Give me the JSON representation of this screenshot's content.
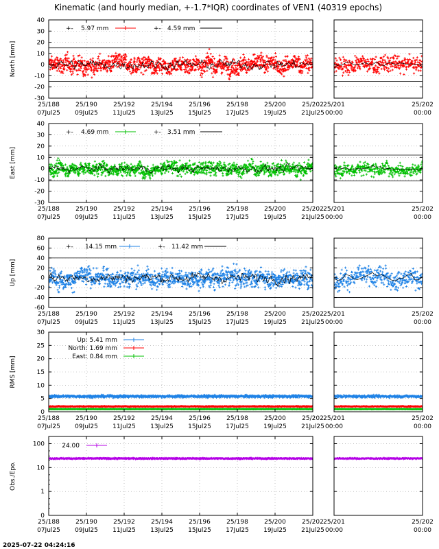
{
  "title": "Kinematic (and hourly median, +-1.7*IQR) coordinates of VEN1 (40319 epochs)",
  "footer_timestamp": "2025-07-22 04:24:16",
  "colors": {
    "north": "#ff0000",
    "east": "#00c000",
    "up": "#1e82e6",
    "obs": "#b400e6",
    "median": "#000000",
    "grid": "#a0a0a0"
  },
  "x_main": {
    "range": [
      188,
      202
    ],
    "ticks": [
      {
        "v": 188,
        "top": "25/188",
        "bottom": "07Jul25"
      },
      {
        "v": 190,
        "top": "25/190",
        "bottom": "09Jul25"
      },
      {
        "v": 192,
        "top": "25/192",
        "bottom": "11Jul25"
      },
      {
        "v": 194,
        "top": "25/194",
        "bottom": "13Jul25"
      },
      {
        "v": 196,
        "top": "25/196",
        "bottom": "15Jul25"
      },
      {
        "v": 198,
        "top": "25/198",
        "bottom": "17Jul25"
      },
      {
        "v": 200,
        "top": "25/200",
        "bottom": "19Jul25"
      },
      {
        "v": 202,
        "top": "25/202",
        "bottom": "21Jul25"
      }
    ]
  },
  "x_zoom": {
    "range": [
      201,
      202
    ],
    "ticks": [
      {
        "v": 201,
        "top": "25/201",
        "bottom": "00:00"
      },
      {
        "v": 202,
        "top": "25/202",
        "bottom": "00:00"
      }
    ]
  },
  "chart_data": [
    {
      "type": "scatter",
      "key": "north",
      "ylabel": "North [mm]",
      "ylim": [
        -30,
        40
      ],
      "yticks": [
        {
          "v": -30,
          "label": "-30"
        },
        {
          "v": -20,
          "label": "-20"
        },
        {
          "v": -10,
          "label": "-10"
        },
        {
          "v": 0,
          "label": "0"
        },
        {
          "v": 10,
          "label": "10"
        },
        {
          "v": 20,
          "label": "20"
        },
        {
          "v": 30,
          "label": "30"
        },
        {
          "v": 40,
          "label": "40"
        }
      ],
      "spread": 9,
      "bounds": [
        -15,
        15
      ],
      "legend": [
        {
          "name": "kinematic",
          "text": "5.97 mm",
          "color": "north"
        },
        {
          "name": "median",
          "text": "4.59 mm",
          "color": "median"
        }
      ]
    },
    {
      "type": "scatter",
      "key": "east",
      "ylabel": "East [mm]",
      "ylim": [
        -30,
        40
      ],
      "yticks": [
        {
          "v": -30,
          "label": "-30"
        },
        {
          "v": -20,
          "label": "-20"
        },
        {
          "v": -10,
          "label": "-10"
        },
        {
          "v": 0,
          "label": "0"
        },
        {
          "v": 10,
          "label": "10"
        },
        {
          "v": 20,
          "label": "20"
        },
        {
          "v": 30,
          "label": "30"
        },
        {
          "v": 40,
          "label": "40"
        }
      ],
      "spread": 7,
      "bounds": [
        -11,
        12
      ],
      "legend": [
        {
          "name": "kinematic",
          "text": "4.69 mm",
          "color": "east"
        },
        {
          "name": "median",
          "text": "3.51 mm",
          "color": "median"
        }
      ]
    },
    {
      "type": "scatter",
      "key": "up",
      "ylabel": "Up [mm]",
      "ylim": [
        -60,
        80
      ],
      "yticks": [
        {
          "v": -60,
          "label": "-60"
        },
        {
          "v": -40,
          "label": "-40"
        },
        {
          "v": -20,
          "label": "-20"
        },
        {
          "v": 0,
          "label": "0"
        },
        {
          "v": 20,
          "label": "20"
        },
        {
          "v": 40,
          "label": "40"
        },
        {
          "v": 60,
          "label": "60"
        },
        {
          "v": 80,
          "label": "80"
        }
      ],
      "spread": 22,
      "bounds": [
        -40,
        40
      ],
      "legend": [
        {
          "name": "kinematic",
          "text": "14.15 mm",
          "color": "up"
        },
        {
          "name": "median",
          "text": "11.42 mm",
          "color": "median"
        }
      ]
    },
    {
      "type": "scatter",
      "key": "rms",
      "ylabel": "RMS [mm]",
      "ylim": [
        0,
        30
      ],
      "yticks": [
        {
          "v": 0,
          "label": "0"
        },
        {
          "v": 5,
          "label": "5"
        },
        {
          "v": 10,
          "label": "10"
        },
        {
          "v": 15,
          "label": "15"
        },
        {
          "v": 20,
          "label": "20"
        },
        {
          "v": 25,
          "label": "25"
        },
        {
          "v": 30,
          "label": "30"
        }
      ],
      "series": [
        {
          "name": "Up",
          "mean": 5.41,
          "color": "up",
          "level": 5.8
        },
        {
          "name": "North",
          "mean": 1.69,
          "color": "north",
          "level": 2.0
        },
        {
          "name": "East",
          "mean": 0.84,
          "color": "east",
          "level": 1.0
        }
      ],
      "legend": [
        {
          "name": "Up",
          "text": "Up:  5.41 mm",
          "color": "up"
        },
        {
          "name": "North",
          "text": "North:  1.69 mm",
          "color": "north"
        },
        {
          "name": "East",
          "text": "East:  0.84 mm",
          "color": "east"
        }
      ]
    },
    {
      "type": "scatter",
      "key": "obs",
      "ylabel": "Obs./Epo.",
      "yscale": "log",
      "ylim": [
        0.1,
        200
      ],
      "yticks": [
        {
          "v": 0.1,
          "label": "0"
        },
        {
          "v": 1,
          "label": "1"
        },
        {
          "v": 10,
          "label": "10"
        },
        {
          "v": 100,
          "label": "100"
        }
      ],
      "level": 24.0,
      "legend": [
        {
          "name": "obs",
          "text": "24.00",
          "color": "obs"
        }
      ]
    }
  ]
}
